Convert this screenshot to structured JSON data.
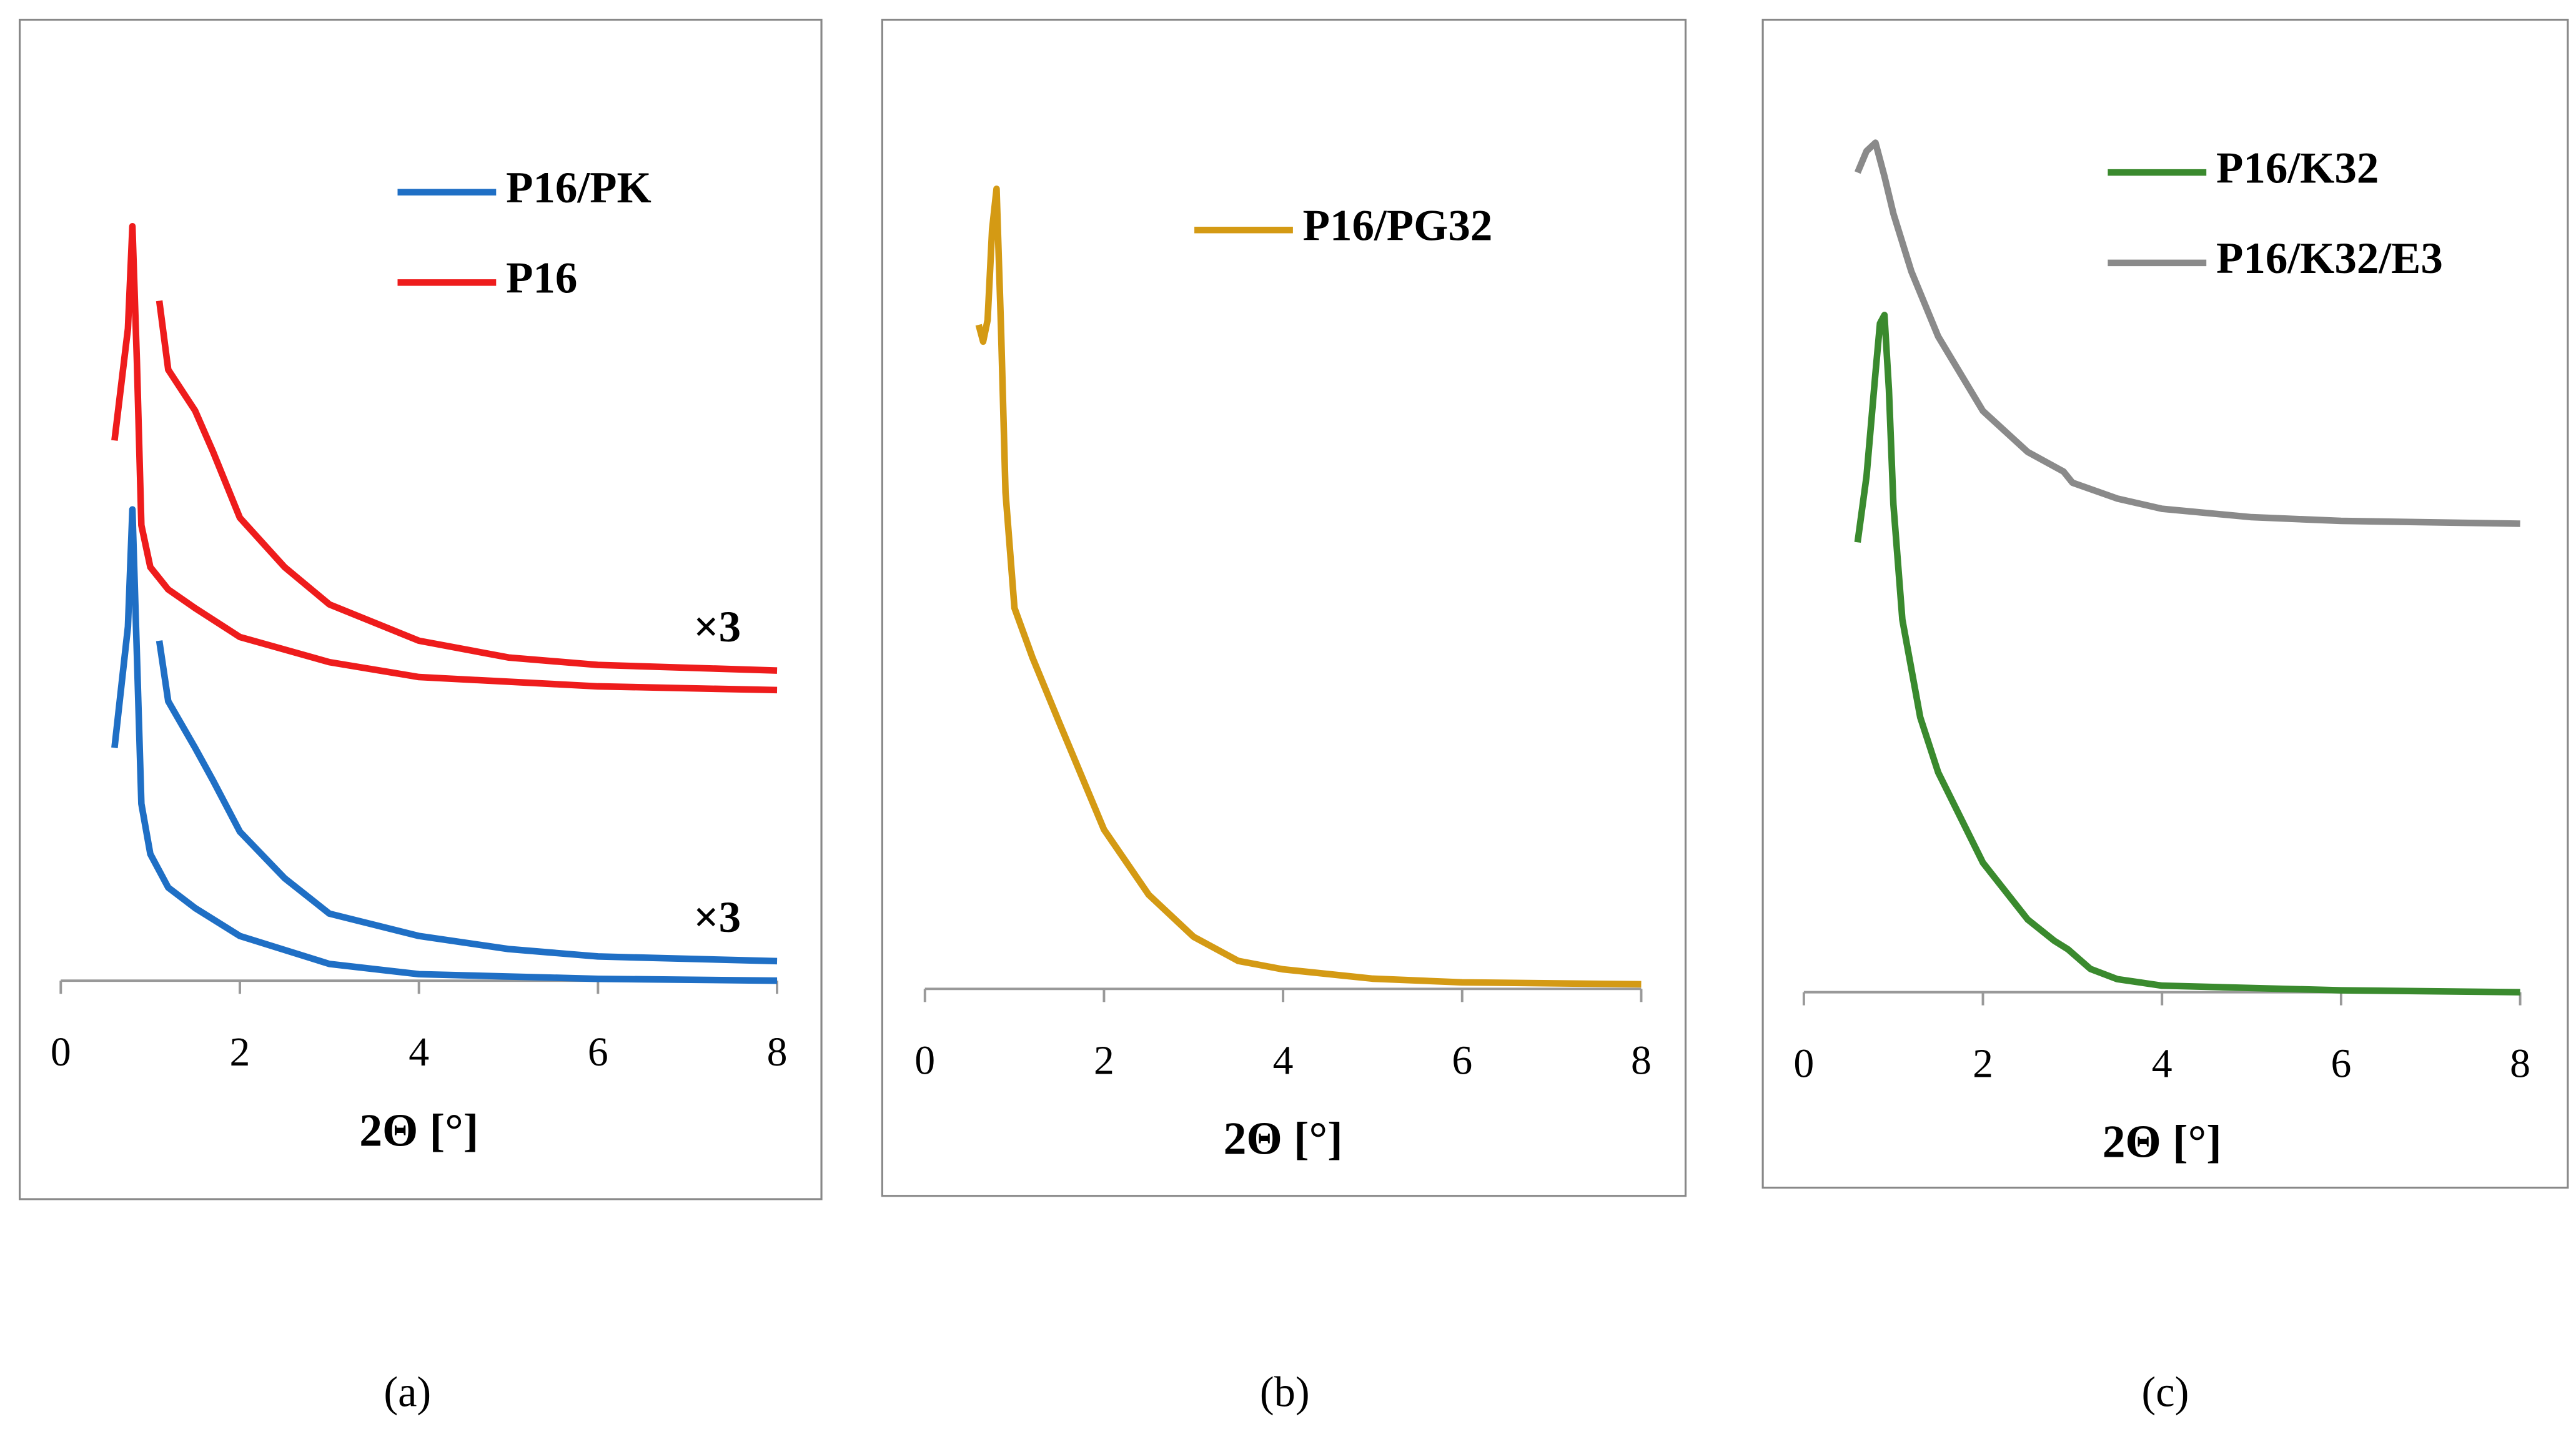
{
  "chart_data": [
    {
      "type": "line",
      "panel_label": "(a)",
      "xlabel": "2Θ [°]",
      "xlim": [
        0,
        8
      ],
      "xticks": [
        0,
        2,
        4,
        6,
        8
      ],
      "ylim": [
        0,
        100
      ],
      "series": [
        {
          "name": "P16/PK",
          "color": "#1f6fc5",
          "x": [
            0.6,
            0.75,
            0.8,
            0.85,
            0.9,
            1.0,
            1.2,
            1.5,
            2,
            3,
            4,
            6,
            8
          ],
          "values": [
            25,
            38,
            50.6,
            35,
            19,
            13.6,
            10,
            7.8,
            4.8,
            1.8,
            0.7,
            0.2,
            0
          ]
        },
        {
          "name": "P16",
          "color": "#ee1c1c",
          "x": [
            0.6,
            0.75,
            0.8,
            0.85,
            0.9,
            1.0,
            1.2,
            1.5,
            2,
            3,
            4,
            6,
            8
          ],
          "values": [
            58,
            70,
            81,
            66.5,
            48.9,
            44.4,
            42,
            40,
            36.9,
            34.2,
            32.6,
            31.6,
            31.2
          ]
        },
        {
          "label": "×3",
          "color": "#1f6fc5",
          "x": [
            1.1,
            1.2,
            1.5,
            1.7,
            2,
            2.5,
            3,
            4,
            5,
            6,
            8
          ],
          "values": [
            36.5,
            30,
            25,
            21.5,
            16,
            11,
            7.2,
            4.8,
            3.4,
            2.6,
            2.1
          ]
        },
        {
          "label": "×3",
          "color": "#ee1c1c",
          "x": [
            1.1,
            1.2,
            1.5,
            1.7,
            2,
            2.5,
            3,
            4,
            5,
            6,
            8
          ],
          "values": [
            73,
            65.6,
            61.2,
            56.8,
            49.7,
            44.4,
            40.4,
            36.5,
            34.7,
            33.9,
            33.3
          ]
        }
      ]
    },
    {
      "type": "line",
      "panel_label": "(b)",
      "xlabel": "2Θ [°]",
      "xlim": [
        0,
        8
      ],
      "xticks": [
        0,
        2,
        4,
        6,
        8
      ],
      "ylim": [
        0,
        100
      ],
      "series": [
        {
          "name": "P16/PG32",
          "color": "#d49a14",
          "x": [
            0.6,
            0.65,
            0.7,
            0.75,
            0.8,
            0.85,
            0.9,
            1.0,
            1.2,
            1.5,
            2,
            2.5,
            3,
            3.5,
            4,
            5,
            6,
            8
          ],
          "values": [
            71.3,
            69.5,
            71.8,
            81.5,
            85.9,
            70.9,
            53.3,
            40.9,
            35.6,
            28.6,
            17.1,
            10.1,
            5.6,
            3,
            2.1,
            1.1,
            0.7,
            0.5
          ]
        }
      ]
    },
    {
      "type": "line",
      "panel_label": "(c)",
      "xlabel": "2Θ [°]",
      "xlim": [
        0,
        8
      ],
      "xticks": [
        0,
        2,
        4,
        6,
        8
      ],
      "ylim": [
        0,
        100
      ],
      "series": [
        {
          "name": "P16/K32",
          "color": "#3a8a2e",
          "x": [
            0.6,
            0.7,
            0.8,
            0.85,
            0.9,
            0.95,
            1.0,
            1.1,
            1.3,
            1.5,
            2,
            2.5,
            2.8,
            2.95,
            3.2,
            3.5,
            4,
            6,
            8
          ],
          "values": [
            48.3,
            55.4,
            66.5,
            71.8,
            72.7,
            64.7,
            52.4,
            40,
            29.5,
            23.6,
            13.9,
            7.8,
            5.5,
            4.6,
            2.5,
            1.4,
            0.7,
            0.2,
            0
          ]
        },
        {
          "name": "P16/K32/E3",
          "color": "#8a8a8a",
          "x": [
            0.6,
            0.7,
            0.8,
            0.9,
            1.0,
            1.2,
            1.5,
            2,
            2.5,
            2.9,
            3,
            3.5,
            4,
            5,
            6,
            8
          ],
          "values": [
            88,
            90.3,
            91.2,
            87.6,
            83.6,
            77.4,
            70.4,
            62.4,
            58,
            55.9,
            54.7,
            53,
            51.9,
            51,
            50.6,
            50.3
          ]
        }
      ]
    }
  ]
}
